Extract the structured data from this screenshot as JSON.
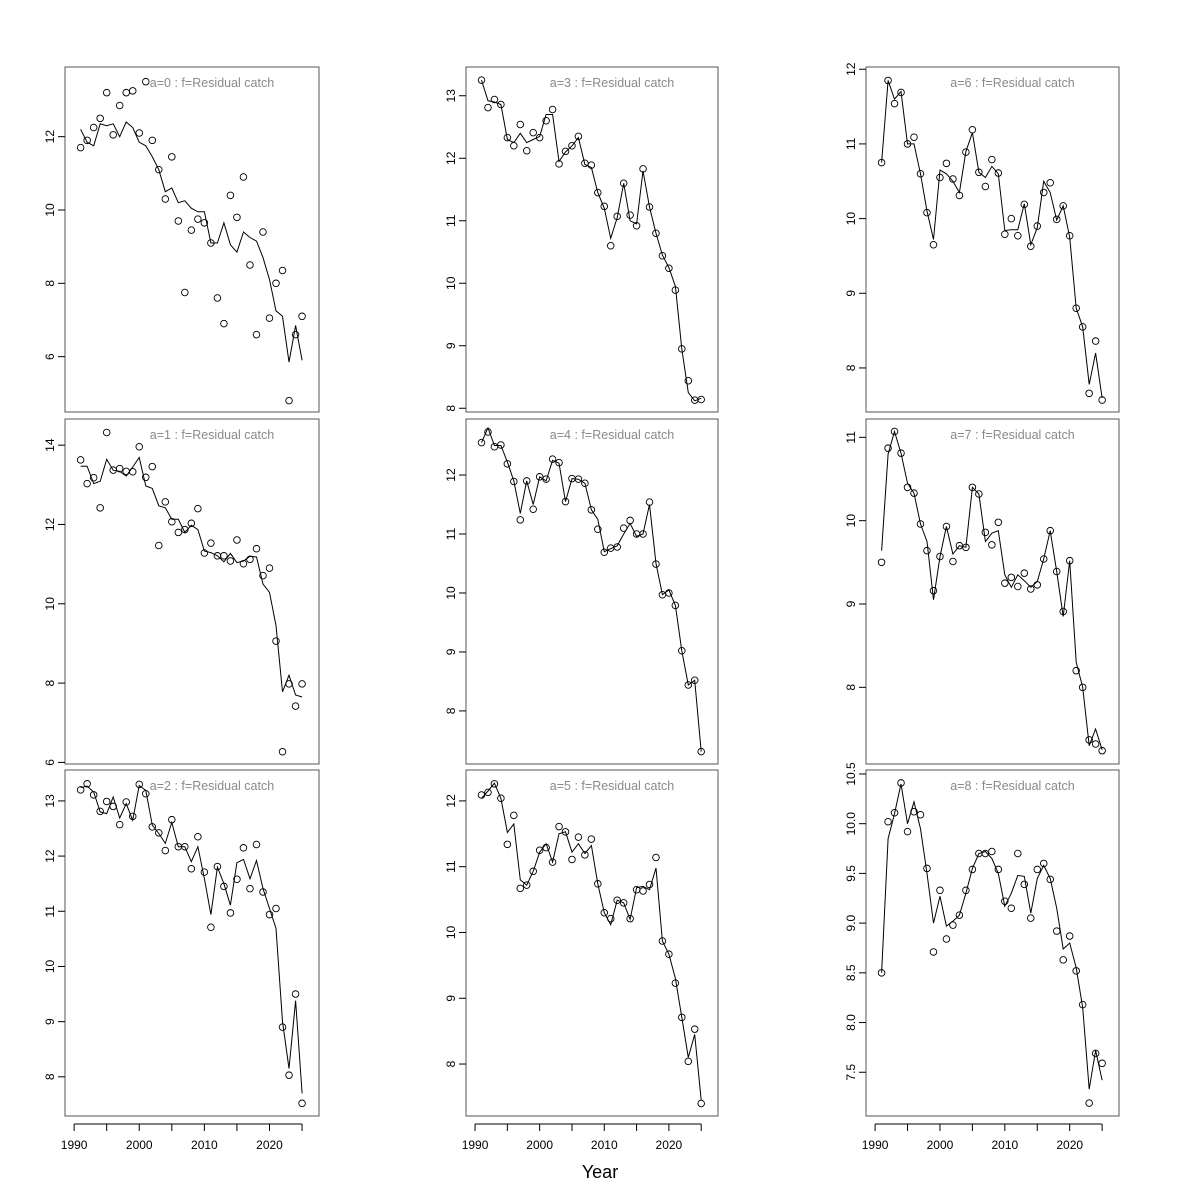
{
  "chart_data": {
    "type": "scatter",
    "layout": "3x3 panels, column-major",
    "xlabel": "Year",
    "x": [
      1991,
      1992,
      1993,
      1994,
      1995,
      1996,
      1997,
      1998,
      1999,
      2000,
      2001,
      2002,
      2003,
      2004,
      2005,
      2006,
      2007,
      2008,
      2009,
      2010,
      2011,
      2012,
      2013,
      2014,
      2015,
      2016,
      2017,
      2018,
      2019,
      2020,
      2021,
      2022,
      2023,
      2024,
      2025
    ],
    "xlim": [
      1988.6,
      2027.6
    ],
    "xticks": [
      1990,
      1995,
      2000,
      2005,
      2010,
      2015,
      2020,
      2025
    ],
    "xticklabels": [
      "1990",
      "2000",
      "2010",
      "2020"
    ],
    "grid": false,
    "panels": [
      {
        "title": "a=0  :  f=Residual catch",
        "ylim": [
          4.49,
          13.9
        ],
        "yticks": [
          "6",
          "8",
          "10",
          "12"
        ],
        "observed": [
          11.7,
          11.9,
          12.25,
          12.5,
          13.2,
          12.05,
          12.85,
          13.2,
          13.25,
          12.1,
          13.5,
          11.9,
          11.1,
          10.3,
          11.45,
          9.7,
          7.75,
          9.45,
          9.75,
          9.65,
          9.1,
          7.6,
          6.9,
          10.4,
          9.8,
          10.9,
          8.5,
          6.6,
          9.4,
          7.05,
          8.0,
          8.35,
          4.8,
          6.6,
          7.1
        ],
        "fitted": [
          12.2,
          11.85,
          11.75,
          12.35,
          12.3,
          12.35,
          12.0,
          12.4,
          12.25,
          11.85,
          11.75,
          11.45,
          11.1,
          10.5,
          10.6,
          10.2,
          10.25,
          10.05,
          9.95,
          9.95,
          9.1,
          9.1,
          9.65,
          9.05,
          8.85,
          9.4,
          9.25,
          9.15,
          8.7,
          8.1,
          7.25,
          7.1,
          5.85,
          6.85,
          5.9
        ]
      },
      {
        "title": "a=1  :  f=Residual catch",
        "ylim": [
          5.96,
          14.66
        ],
        "yticks": [
          "6",
          "8",
          "10",
          "12",
          "14"
        ],
        "observed": [
          13.63,
          13.03,
          13.18,
          12.42,
          14.32,
          13.37,
          13.41,
          13.34,
          13.33,
          13.96,
          13.19,
          13.46,
          11.47,
          12.57,
          12.07,
          11.8,
          11.87,
          12.03,
          12.4,
          11.28,
          11.53,
          11.21,
          11.21,
          11.08,
          11.61,
          11.01,
          11.12,
          11.39,
          10.71,
          10.9,
          9.06,
          6.27,
          7.98,
          7.42,
          7.98
        ],
        "fitted": [
          13.47,
          13.47,
          13.03,
          13.09,
          13.64,
          13.37,
          13.34,
          13.22,
          13.45,
          13.69,
          12.97,
          12.91,
          12.47,
          12.42,
          12.13,
          12.13,
          11.8,
          11.98,
          11.87,
          11.33,
          11.29,
          11.21,
          11.06,
          11.27,
          11.04,
          11.08,
          11.2,
          11.18,
          10.5,
          10.29,
          9.45,
          7.78,
          8.2,
          7.7,
          7.65
        ]
      },
      {
        "title": "a=2  :  f=Residual catch",
        "ylim": [
          7.29,
          13.56
        ],
        "yticks": [
          "8",
          "9",
          "10",
          "11",
          "12",
          "13"
        ],
        "observed": [
          13.2,
          13.31,
          13.11,
          12.81,
          12.99,
          12.9,
          12.57,
          12.98,
          12.72,
          13.3,
          13.13,
          12.53,
          12.42,
          12.1,
          12.66,
          12.17,
          12.17,
          11.77,
          12.35,
          11.71,
          10.71,
          11.81,
          11.45,
          10.97,
          11.58,
          12.15,
          11.41,
          12.21,
          11.35,
          10.94,
          11.05,
          8.9,
          8.03,
          9.5,
          7.52
        ],
        "fitted": [
          13.24,
          13.27,
          13.16,
          12.8,
          12.77,
          13.07,
          12.69,
          12.95,
          12.65,
          13.28,
          13.19,
          12.56,
          12.41,
          12.23,
          12.61,
          12.17,
          12.17,
          11.9,
          12.17,
          11.59,
          10.94,
          11.8,
          11.5,
          11.11,
          11.88,
          11.94,
          11.59,
          11.92,
          11.41,
          11.05,
          10.69,
          9.0,
          8.15,
          9.38,
          7.7
        ]
      },
      {
        "title": "a=3  :  f=Residual catch",
        "ylim": [
          7.94,
          13.46
        ],
        "yticks": [
          "8",
          "9",
          "10",
          "11",
          "12",
          "13"
        ],
        "observed": [
          13.25,
          12.81,
          12.94,
          12.86,
          12.33,
          12.2,
          12.54,
          12.12,
          12.41,
          12.33,
          12.6,
          12.78,
          11.91,
          12.11,
          12.2,
          12.35,
          11.92,
          11.89,
          11.45,
          11.23,
          10.6,
          11.07,
          11.6,
          11.09,
          10.92,
          11.83,
          11.22,
          10.8,
          10.44,
          10.24,
          9.89,
          8.95,
          8.44,
          8.13,
          8.14
        ],
        "fitted": [
          13.25,
          12.92,
          12.9,
          12.86,
          12.3,
          12.25,
          12.4,
          12.25,
          12.3,
          12.35,
          12.7,
          12.7,
          11.95,
          12.1,
          12.2,
          12.33,
          11.9,
          11.85,
          11.45,
          11.2,
          10.72,
          11.05,
          11.6,
          11.0,
          10.95,
          11.8,
          11.22,
          10.8,
          10.45,
          10.25,
          9.95,
          8.95,
          8.25,
          8.12,
          8.16
        ]
      },
      {
        "title": "a=4  :  f=Residual catch",
        "ylim": [
          7.1,
          12.95
        ],
        "yticks": [
          "8",
          "9",
          "10",
          "11",
          "12"
        ],
        "observed": [
          12.55,
          12.73,
          12.48,
          12.51,
          12.19,
          11.89,
          11.24,
          11.9,
          11.42,
          11.97,
          11.93,
          12.27,
          12.21,
          11.55,
          11.94,
          11.93,
          11.86,
          11.41,
          11.08,
          10.69,
          10.76,
          10.78,
          11.1,
          11.23,
          11.0,
          11.0,
          11.54,
          10.49,
          9.97,
          10.0,
          9.79,
          9.02,
          8.44,
          8.52,
          7.31
        ],
        "fitted": [
          12.55,
          12.8,
          12.5,
          12.5,
          12.22,
          11.9,
          11.35,
          11.9,
          11.5,
          11.97,
          11.9,
          12.25,
          12.2,
          11.55,
          11.94,
          11.93,
          11.86,
          11.41,
          11.25,
          10.7,
          10.75,
          10.8,
          11.0,
          11.18,
          10.96,
          11.0,
          11.5,
          10.5,
          9.97,
          10.05,
          9.79,
          9.02,
          8.44,
          8.52,
          7.31
        ]
      },
      {
        "title": "a=5  :  f=Residual catch",
        "ylim": [
          7.21,
          12.47
        ],
        "yticks": [
          "8",
          "9",
          "10",
          "11",
          "12"
        ],
        "observed": [
          12.09,
          12.13,
          12.26,
          12.04,
          11.34,
          11.78,
          10.67,
          10.72,
          10.93,
          11.25,
          11.29,
          11.07,
          11.61,
          11.53,
          11.11,
          11.45,
          11.18,
          11.42,
          10.74,
          10.3,
          10.21,
          10.49,
          10.45,
          10.21,
          10.65,
          10.63,
          10.73,
          11.14,
          9.87,
          9.67,
          9.23,
          8.71,
          8.04,
          8.53,
          7.4
        ],
        "fitted": [
          12.04,
          12.15,
          12.27,
          12.04,
          11.52,
          11.65,
          10.8,
          10.72,
          10.93,
          11.22,
          11.35,
          11.07,
          11.5,
          11.53,
          11.22,
          11.35,
          11.2,
          11.32,
          10.74,
          10.3,
          10.12,
          10.49,
          10.45,
          10.2,
          10.68,
          10.7,
          10.65,
          10.98,
          9.87,
          9.67,
          9.3,
          8.71,
          8.1,
          8.45,
          7.45
        ]
      },
      {
        "title": "a=6  :  f=Residual catch",
        "ylim": [
          7.41,
          12.03
        ],
        "yticks": [
          "8",
          "9",
          "10",
          "11",
          "12"
        ],
        "observed": [
          10.75,
          11.85,
          11.54,
          11.69,
          11.0,
          11.09,
          10.6,
          10.08,
          9.65,
          10.55,
          10.74,
          10.53,
          10.31,
          10.89,
          11.19,
          10.62,
          10.43,
          10.79,
          10.61,
          9.79,
          10.0,
          9.77,
          10.19,
          9.63,
          9.9,
          10.35,
          10.48,
          9.99,
          10.17,
          9.77,
          8.8,
          8.55,
          7.66,
          8.36,
          7.57
        ],
        "fitted": [
          10.75,
          11.85,
          11.6,
          11.7,
          11.0,
          11.0,
          10.6,
          10.1,
          9.72,
          10.65,
          10.6,
          10.5,
          10.35,
          10.9,
          11.15,
          10.62,
          10.55,
          10.7,
          10.6,
          9.84,
          9.85,
          9.85,
          10.2,
          9.65,
          9.88,
          10.5,
          10.35,
          9.98,
          10.17,
          9.75,
          8.8,
          8.55,
          7.78,
          8.2,
          7.6
        ]
      },
      {
        "title": "a=7  :  f=Residual catch",
        "ylim": [
          7.08,
          11.22
        ],
        "yticks": [
          "8",
          "9",
          "10",
          "11"
        ],
        "observed": [
          9.5,
          10.87,
          11.07,
          10.81,
          10.4,
          10.33,
          9.96,
          9.64,
          9.16,
          9.57,
          9.93,
          9.51,
          9.7,
          9.68,
          10.4,
          10.32,
          9.86,
          9.71,
          9.98,
          9.25,
          9.32,
          9.21,
          9.37,
          9.18,
          9.23,
          9.54,
          9.88,
          9.39,
          8.91,
          9.52,
          8.2,
          8.0,
          7.37,
          7.32,
          7.24
        ],
        "fitted": [
          9.64,
          10.8,
          11.07,
          10.81,
          10.45,
          10.33,
          9.96,
          9.75,
          9.05,
          9.57,
          9.93,
          9.6,
          9.7,
          9.68,
          10.4,
          10.32,
          9.75,
          9.85,
          9.88,
          9.35,
          9.2,
          9.35,
          9.28,
          9.2,
          9.27,
          9.54,
          9.88,
          9.39,
          8.85,
          9.52,
          8.3,
          8.0,
          7.3,
          7.5,
          7.25
        ]
      },
      {
        "title": "a=8  :  f=Residual catch",
        "ylim": [
          7.06,
          10.54
        ],
        "yticks": [
          "7.5",
          "8.0",
          "8.5",
          "9.0",
          "9.5",
          "10.0",
          "10.5"
        ],
        "observed": [
          8.5,
          10.02,
          10.11,
          10.41,
          9.92,
          10.12,
          10.09,
          9.55,
          8.71,
          9.33,
          8.84,
          8.98,
          9.08,
          9.33,
          9.54,
          9.7,
          9.7,
          9.72,
          9.54,
          9.22,
          9.15,
          9.7,
          9.39,
          9.05,
          9.54,
          9.6,
          9.44,
          8.92,
          8.63,
          8.87,
          8.52,
          8.18,
          7.19,
          7.69,
          7.59
        ],
        "fitted": [
          8.5,
          9.85,
          10.1,
          10.4,
          10.0,
          10.22,
          9.95,
          9.5,
          9.0,
          9.27,
          8.97,
          9.02,
          9.08,
          9.3,
          9.55,
          9.7,
          9.72,
          9.65,
          9.5,
          9.17,
          9.3,
          9.48,
          9.47,
          9.1,
          9.45,
          9.58,
          9.45,
          9.15,
          8.74,
          8.8,
          8.55,
          8.15,
          7.33,
          7.72,
          7.42
        ]
      }
    ]
  }
}
